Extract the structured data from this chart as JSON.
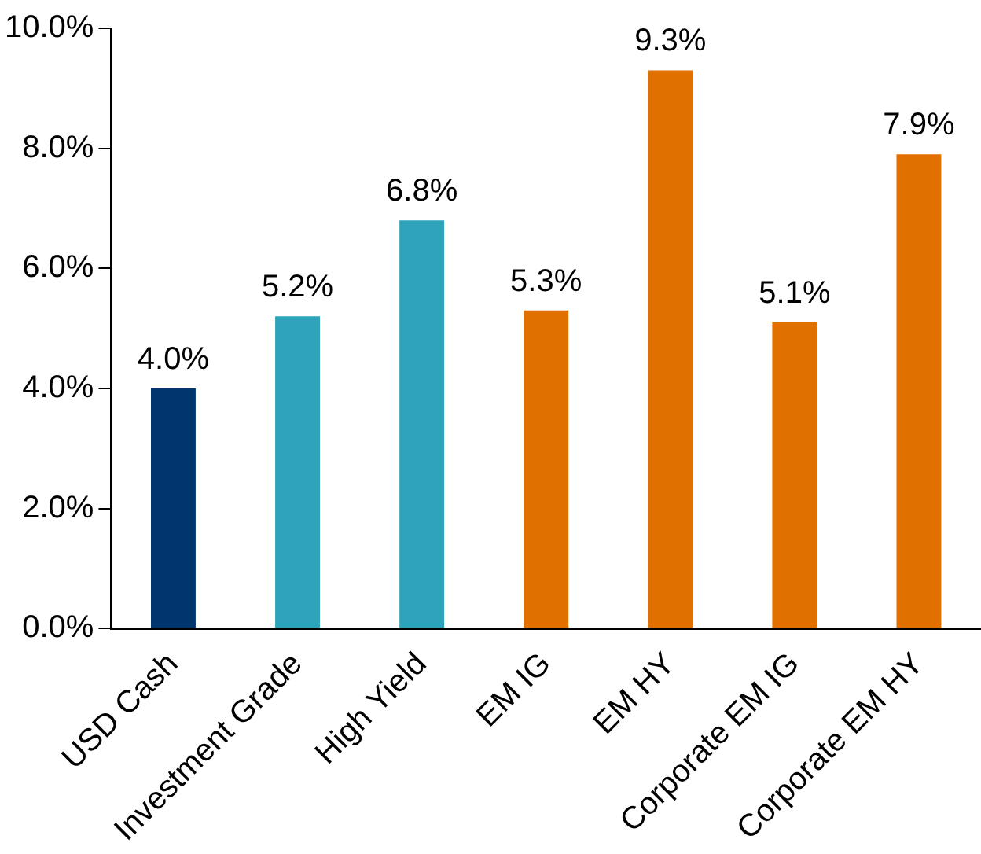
{
  "chart_data": {
    "type": "bar",
    "categories": [
      "USD Cash",
      "Investment Grade",
      "High Yield",
      "EM IG",
      "EM HY",
      "Corporate EM IG",
      "Corporate EM HY"
    ],
    "values": [
      4.0,
      5.2,
      6.8,
      5.3,
      9.3,
      5.1,
      7.9
    ],
    "colors": [
      "#00366e",
      "#2ea3b9",
      "#2ea3b9",
      "#e07000",
      "#e07000",
      "#e07000",
      "#e07000"
    ],
    "value_labels": [
      "4.0%",
      "5.2%",
      "6.8%",
      "5.3%",
      "9.3%",
      "5.1%",
      "7.9%"
    ],
    "ylim": [
      0,
      10
    ],
    "yticks": [
      {
        "value": 0,
        "label": "0.0%"
      },
      {
        "value": 2,
        "label": "2.0%"
      },
      {
        "value": 4,
        "label": "4.0%"
      },
      {
        "value": 6,
        "label": "6.0%"
      },
      {
        "value": 8,
        "label": "8.0%"
      },
      {
        "value": 10,
        "label": "10.0%"
      }
    ],
    "grid": false,
    "legend": false
  }
}
